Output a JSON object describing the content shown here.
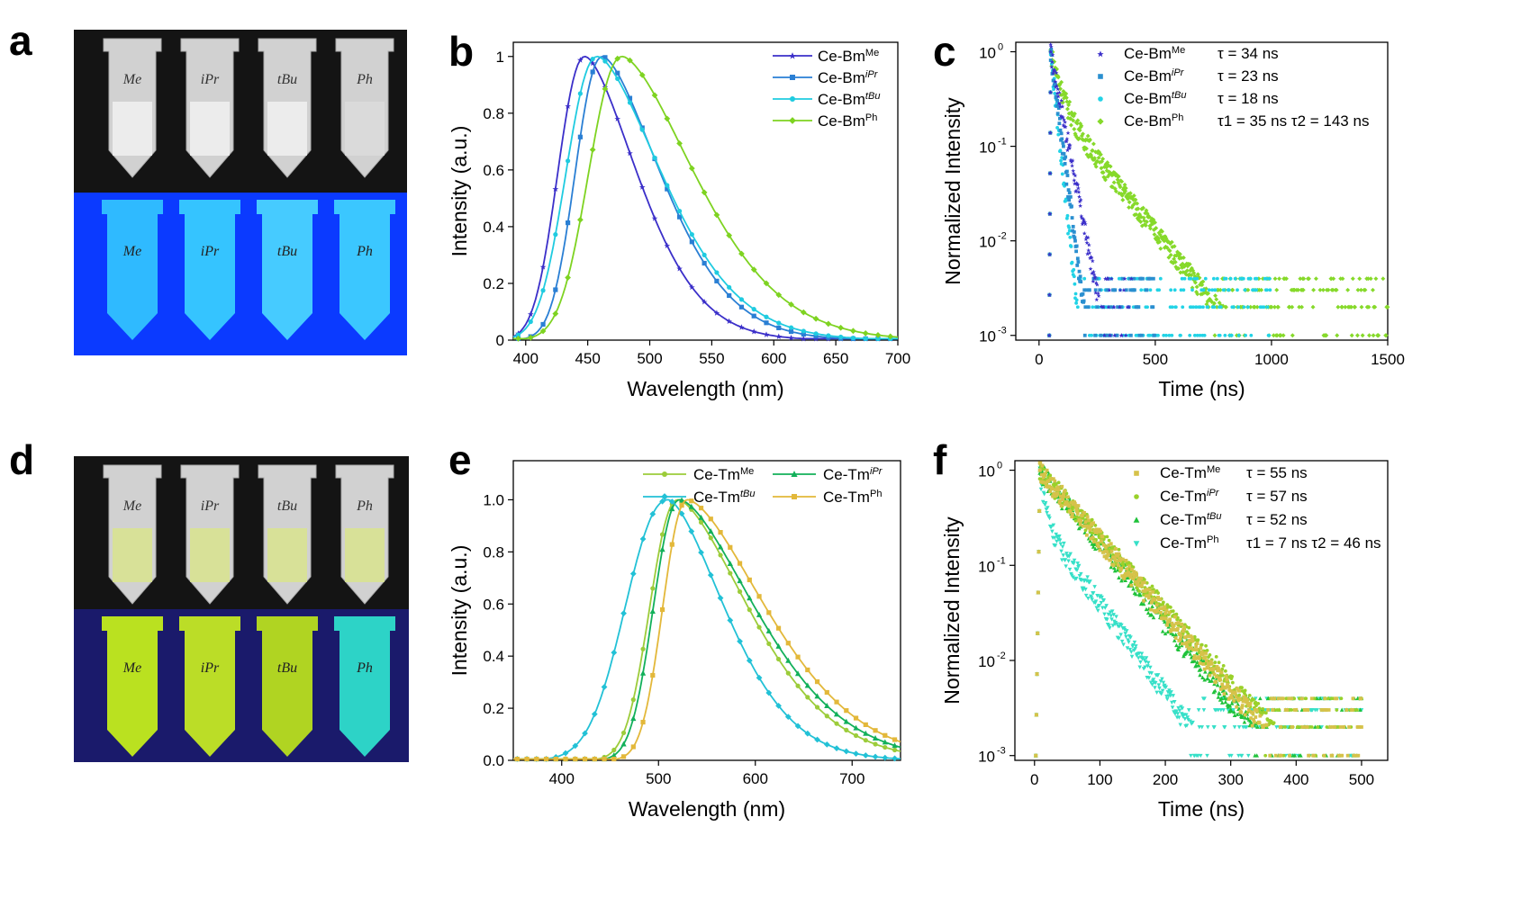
{
  "panels": {
    "a": {
      "letter": "a",
      "photo_labels": [
        "Me",
        "iPr",
        "tBu",
        "Ph"
      ],
      "photo_tint_top": "#d9d9d9",
      "photo_tint_bottom": "#0b3aff"
    },
    "b": {
      "letter": "b"
    },
    "c": {
      "letter": "c"
    },
    "d": {
      "letter": "d",
      "photo_labels": [
        "Me",
        "iPr",
        "tBu",
        "Ph"
      ],
      "photo_tint_top": "#d9d9d9",
      "photo_tint_bottom": "#1a1a6b"
    },
    "e": {
      "letter": "e"
    },
    "f": {
      "letter": "f"
    }
  },
  "chart_data": [
    {
      "id": "b",
      "type": "line",
      "xlabel": "Wavelength (nm)",
      "ylabel": "Intensity (a.u.)",
      "xlim": [
        390,
        700
      ],
      "ylim": [
        0,
        1.05
      ],
      "xticks": [
        400,
        450,
        500,
        550,
        600,
        650,
        700
      ],
      "yticks": [
        0,
        0.2,
        0.4,
        0.6,
        0.8,
        1
      ],
      "ytick_labels": [
        "0",
        "0.2",
        "0.4",
        "0.6",
        "0.8",
        "1"
      ],
      "legend_position": "top-right",
      "series": [
        {
          "name": "Ce-Bm",
          "sup": "Me",
          "color": "#3b2fc9",
          "marker": "star",
          "peak": 448,
          "wl": 26,
          "wr": 52,
          "peak_y": 1.0
        },
        {
          "name": "Ce-Bm",
          "sup": "iPr",
          "color": "#2a7fd4",
          "marker": "square",
          "peak": 462,
          "wl": 26,
          "wr": 58,
          "peak_y": 1.0
        },
        {
          "name": "Ce-Bm",
          "sup": "tBu",
          "color": "#1fcbe0",
          "marker": "circle",
          "peak": 458,
          "wl": 30,
          "wr": 64,
          "peak_y": 1.0
        },
        {
          "name": "Ce-Bm",
          "sup": "Ph",
          "color": "#7ed321",
          "marker": "diamond",
          "peak": 478,
          "wl": 32,
          "wr": 72,
          "peak_y": 1.0
        }
      ]
    },
    {
      "id": "c",
      "type": "scatter",
      "xlabel": "Time (ns)",
      "ylabel": "Normalized Intensity",
      "xlim": [
        -100,
        1500
      ],
      "ylim_log10": [
        -3.05,
        0.1
      ],
      "xticks": [
        0,
        500,
        1000,
        1500
      ],
      "yticks_log10": [
        -3,
        -2,
        -1,
        0
      ],
      "ytick_labels": [
        "10",
        "10",
        "10",
        "10"
      ],
      "ytick_exponents": [
        "-3",
        "-2",
        "-1",
        "0"
      ],
      "legend_position": "top-right",
      "series": [
        {
          "name": "Ce-Bm",
          "sup": "Me",
          "color": "#3b2fc9",
          "marker": "star",
          "lifetime": "τ = 34 ns",
          "tau": 34,
          "end_t": 400
        },
        {
          "name": "Ce-Bm",
          "sup": "iPr",
          "color": "#2a8fd0",
          "marker": "square",
          "lifetime": "τ = 23 ns",
          "tau": 23,
          "end_t": 500
        },
        {
          "name": "Ce-Bm",
          "sup": "tBu",
          "color": "#22d3e6",
          "marker": "circle",
          "lifetime": "τ = 18 ns",
          "tau": 18,
          "end_t": 1000
        },
        {
          "name": "Ce-Bm",
          "sup": "Ph",
          "color": "#86d92a",
          "marker": "diamond",
          "lifetime": "τ1 = 35 ns   τ2 = 143 ns",
          "tau": 35,
          "tau2": 143,
          "end_t": 1500
        }
      ]
    },
    {
      "id": "e",
      "type": "line",
      "xlabel": "Wavelength (nm)",
      "ylabel": "Intensity (a.u.)",
      "xlim": [
        350,
        750
      ],
      "ylim": [
        0,
        1.15
      ],
      "xticks": [
        400,
        500,
        600,
        700
      ],
      "yticks": [
        0,
        0.2,
        0.4,
        0.6,
        0.8,
        1.0
      ],
      "ytick_labels": [
        "0.0",
        "0.2",
        "0.4",
        "0.6",
        "0.8",
        "1.0"
      ],
      "legend_position": "top",
      "series": [
        {
          "name": "Ce-Tm",
          "sup": "Me",
          "color": "#9ccc3a",
          "marker": "circle",
          "peak": 520,
          "wl": 34,
          "wr": 90,
          "peak_y": 1.0
        },
        {
          "name": "Ce-Tm",
          "sup": "iPr",
          "color": "#12b05a",
          "marker": "triangle",
          "peak": 522,
          "wl": 32,
          "wr": 96,
          "peak_y": 1.0
        },
        {
          "name": "Ce-Tm",
          "sup": "tBu",
          "color": "#22c1d6",
          "marker": "diamond",
          "peak": 510,
          "wl": 52,
          "wr": 72,
          "peak_y": 1.0
        },
        {
          "name": "Ce-Tm",
          "sup": "Ph",
          "color": "#e3b83a",
          "marker": "square",
          "peak": 530,
          "wl": 30,
          "wr": 100,
          "peak_y": 1.0
        }
      ]
    },
    {
      "id": "f",
      "type": "scatter",
      "xlabel": "Time (ns)",
      "ylabel": "Normalized Intensity",
      "xlim": [
        -30,
        540
      ],
      "ylim_log10": [
        -3.05,
        0.1
      ],
      "xticks": [
        0,
        100,
        200,
        300,
        400,
        500
      ],
      "yticks_log10": [
        -3,
        -2,
        -1,
        0
      ],
      "ytick_labels": [
        "10",
        "10",
        "10",
        "10"
      ],
      "ytick_exponents": [
        "-3",
        "-2",
        "-1",
        "0"
      ],
      "legend_position": "top-right",
      "series": [
        {
          "name": "Ce-Tm",
          "sup": "Me",
          "color": "#d6c24a",
          "marker": "square",
          "lifetime": "τ = 55 ns",
          "tau": 55,
          "end_t": 500
        },
        {
          "name": "Ce-Tm",
          "sup": "iPr",
          "color": "#9ad12a",
          "marker": "circle",
          "lifetime": "τ = 57 ns",
          "tau": 57,
          "end_t": 500
        },
        {
          "name": "Ce-Tm",
          "sup": "tBu",
          "color": "#1fc23a",
          "marker": "triangle",
          "lifetime": "τ = 52 ns",
          "tau": 52,
          "end_t": 500
        },
        {
          "name": "Ce-Tm",
          "sup": "Ph",
          "color": "#36e0c8",
          "marker": "triangle-down",
          "lifetime": "τ1 = 7 ns τ2 = 46 ns",
          "tau": 7,
          "tau2": 46,
          "end_t": 500
        }
      ]
    }
  ]
}
